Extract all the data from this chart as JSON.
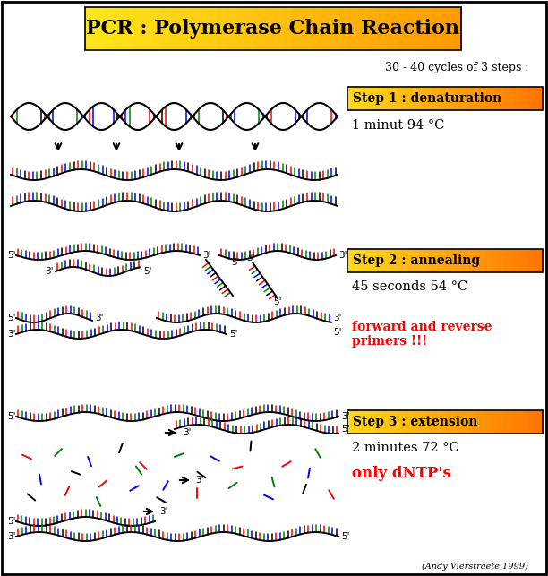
{
  "title": "PCR : Polymerase Chain Reaction",
  "subtitle": "30 - 40 cycles of 3 steps :",
  "step1_label": "Step 1 : denaturation",
  "step1_desc": "1 minut 94 °C",
  "step2_label": "Step 2 : annealing",
  "step2_desc": "45 seconds 54 °C",
  "step2_subdesc": "forward and reverse\nprimers !!!",
  "step3_label": "Step 3 : extension",
  "step3_desc": "2 minutes 72 °C",
  "step3_subdesc": "only dNTP's",
  "footer": "(Andy Vierstraete 1999)",
  "red_text_color": "#FF0000",
  "bg_color": "#FFFFFF",
  "border_color": "#000000",
  "fig_width": 6.12,
  "fig_height": 6.43,
  "dpi": 100
}
